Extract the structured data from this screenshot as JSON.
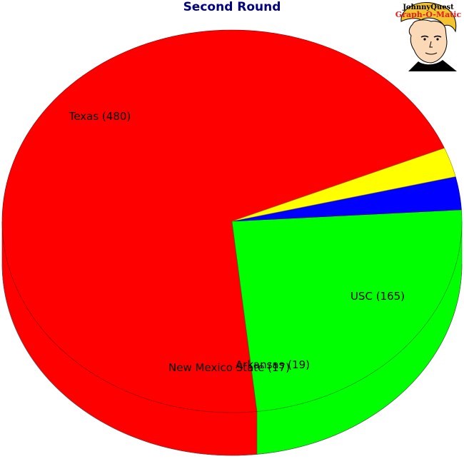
{
  "chart_data": {
    "type": "pie",
    "title": "Second Round",
    "slices": [
      {
        "label": "Texas (480)",
        "value": 480,
        "color": "#ff0000"
      },
      {
        "label": "USC (165)",
        "value": 165,
        "color": "#00ff00"
      },
      {
        "label": "Arkansas (19)",
        "value": 19,
        "color": "#0000ff"
      },
      {
        "label": "New Mexico State (17)",
        "value": 17,
        "color": "#ffff00"
      }
    ]
  },
  "logo": {
    "line1": "JohnnyQuest",
    "line2": "Graph-O-Matic"
  }
}
